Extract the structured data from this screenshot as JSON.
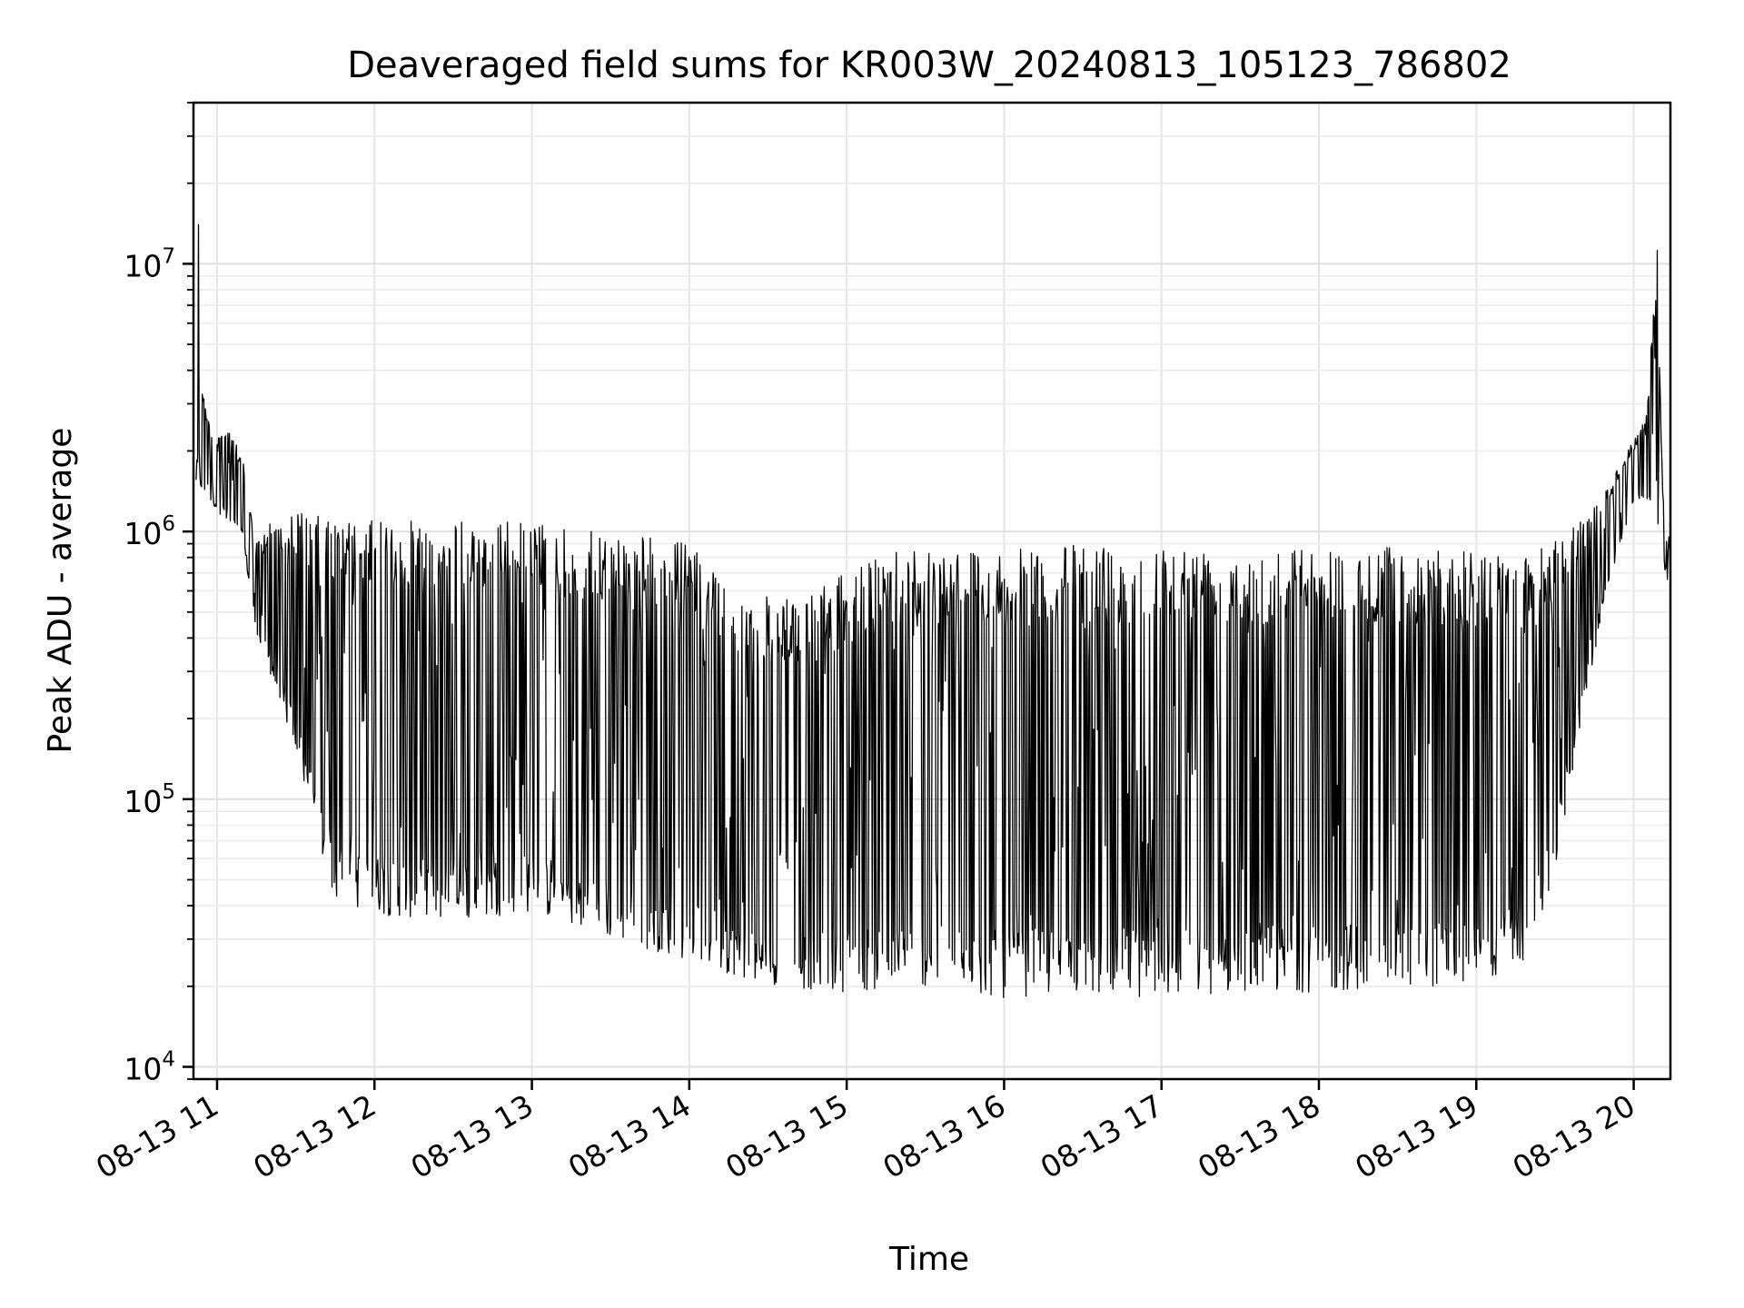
{
  "chart_data": {
    "type": "line",
    "title": "Deaveraged field sums for KR003W_20240813_105123_786802",
    "xlabel": "Time",
    "ylabel": "Peak ADU - average",
    "yscale": "log",
    "ylim": [
      9000,
      40000000
    ],
    "xlim": [
      "2024-08-13 10:51",
      "2024-08-13 20:14"
    ],
    "grid": true,
    "line_color": "#000000",
    "x_ticks": [
      {
        "t": "2024-08-13 11:00",
        "label": "08-13 11"
      },
      {
        "t": "2024-08-13 12:00",
        "label": "08-13 12"
      },
      {
        "t": "2024-08-13 13:00",
        "label": "08-13 13"
      },
      {
        "t": "2024-08-13 14:00",
        "label": "08-13 14"
      },
      {
        "t": "2024-08-13 15:00",
        "label": "08-13 15"
      },
      {
        "t": "2024-08-13 16:00",
        "label": "08-13 16"
      },
      {
        "t": "2024-08-13 17:00",
        "label": "08-13 17"
      },
      {
        "t": "2024-08-13 18:00",
        "label": "08-13 18"
      },
      {
        "t": "2024-08-13 19:00",
        "label": "08-13 19"
      },
      {
        "t": "2024-08-13 20:00",
        "label": "08-13 20"
      }
    ],
    "y_ticks": [
      {
        "value": 10000,
        "base": "10",
        "exp": "4"
      },
      {
        "value": 100000,
        "base": "10",
        "exp": "5"
      },
      {
        "value": 1000000,
        "base": "10",
        "exp": "6"
      },
      {
        "value": 10000000,
        "base": "10",
        "exp": "7"
      }
    ],
    "series": [
      {
        "upper_envelope": [
          [
            "2024-08-13 10:52",
            3500000
          ],
          [
            "2024-08-13 10:53",
            27000000
          ],
          [
            "2024-08-13 10:54",
            4000000
          ],
          [
            "2024-08-13 10:56",
            2800000
          ],
          [
            "2024-08-13 11:00",
            2200000
          ],
          [
            "2024-08-13 11:05",
            2600000
          ],
          [
            "2024-08-13 11:10",
            1800000
          ],
          [
            "2024-08-13 11:15",
            900000
          ],
          [
            "2024-08-13 11:20",
            1100000
          ],
          [
            "2024-08-13 11:30",
            1200000
          ],
          [
            "2024-08-13 11:45",
            1100000
          ],
          [
            "2024-08-13 12:00",
            1100000
          ],
          [
            "2024-08-13 12:30",
            1100000
          ],
          [
            "2024-08-13 13:00",
            1100000
          ],
          [
            "2024-08-13 13:20",
            1000000
          ],
          [
            "2024-08-13 13:40",
            1000000
          ],
          [
            "2024-08-13 14:00",
            900000
          ],
          [
            "2024-08-13 14:20",
            600000
          ],
          [
            "2024-08-13 14:40",
            550000
          ],
          [
            "2024-08-13 15:00",
            700000
          ],
          [
            "2024-08-13 15:20",
            900000
          ],
          [
            "2024-08-13 15:40",
            900000
          ],
          [
            "2024-08-13 16:00",
            850000
          ],
          [
            "2024-08-13 16:30",
            900000
          ],
          [
            "2024-08-13 17:00",
            900000
          ],
          [
            "2024-08-13 17:30",
            900000
          ],
          [
            "2024-08-13 18:00",
            880000
          ],
          [
            "2024-08-13 18:30",
            880000
          ],
          [
            "2024-08-13 19:00",
            850000
          ],
          [
            "2024-08-13 19:20",
            800000
          ],
          [
            "2024-08-13 19:40",
            1100000
          ],
          [
            "2024-08-13 19:50",
            1500000
          ],
          [
            "2024-08-13 20:00",
            2200000
          ],
          [
            "2024-08-13 20:05",
            2800000
          ],
          [
            "2024-08-13 20:09",
            12000000
          ],
          [
            "2024-08-13 20:11",
            1500000
          ],
          [
            "2024-08-13 20:14",
            900000
          ]
        ],
        "lower_envelope": [
          [
            "2024-08-13 10:52",
            1500000
          ],
          [
            "2024-08-13 11:00",
            1200000
          ],
          [
            "2024-08-13 11:10",
            900000
          ],
          [
            "2024-08-13 11:15",
            400000
          ],
          [
            "2024-08-13 11:20",
            300000
          ],
          [
            "2024-08-13 11:30",
            150000
          ],
          [
            "2024-08-13 11:40",
            60000
          ],
          [
            "2024-08-13 11:45",
            42000
          ],
          [
            "2024-08-13 12:00",
            37000
          ],
          [
            "2024-08-13 12:30",
            35000
          ],
          [
            "2024-08-13 13:00",
            38000
          ],
          [
            "2024-08-13 13:30",
            30000
          ],
          [
            "2024-08-13 14:00",
            25000
          ],
          [
            "2024-08-13 14:30",
            20000
          ],
          [
            "2024-08-13 15:00",
            19000
          ],
          [
            "2024-08-13 15:30",
            20000
          ],
          [
            "2024-08-13 16:00",
            18000
          ],
          [
            "2024-08-13 16:30",
            19000
          ],
          [
            "2024-08-13 17:00",
            18000
          ],
          [
            "2024-08-13 17:30",
            19000
          ],
          [
            "2024-08-13 18:00",
            19000
          ],
          [
            "2024-08-13 18:30",
            20000
          ],
          [
            "2024-08-13 19:00",
            20000
          ],
          [
            "2024-08-13 19:20",
            25000
          ],
          [
            "2024-08-13 19:30",
            50000
          ],
          [
            "2024-08-13 19:40",
            200000
          ],
          [
            "2024-08-13 19:50",
            600000
          ],
          [
            "2024-08-13 20:00",
            1300000
          ],
          [
            "2024-08-13 20:08",
            1300000
          ],
          [
            "2024-08-13 20:12",
            700000
          ],
          [
            "2024-08-13 20:14",
            600000
          ]
        ]
      }
    ]
  }
}
